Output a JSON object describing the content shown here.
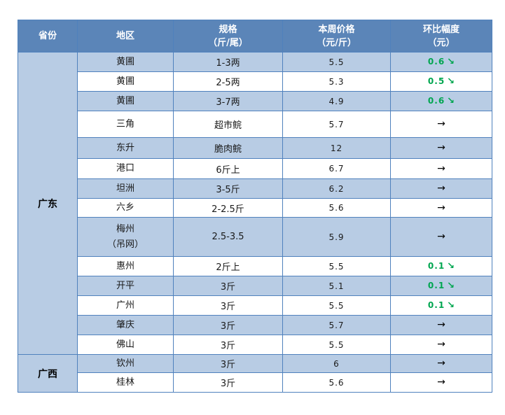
{
  "colors": {
    "header_bg": "#5b85b8",
    "row_alt_bg": "#b8cce4",
    "border": "#4f81bd",
    "down_green": "#00a650",
    "header_text": "#ffffff"
  },
  "icons": {
    "down_arrow": "↘",
    "flat_arrow": "→"
  },
  "table": {
    "columns": [
      {
        "line1": "省份",
        "line2": ""
      },
      {
        "line1": "地区",
        "line2": ""
      },
      {
        "line1": "规格",
        "line2": "（斤/尾）"
      },
      {
        "line1": "本周价格",
        "line2": "（元/斤）"
      },
      {
        "line1": "环比幅度",
        "line2": "（元）"
      }
    ],
    "sections": [
      {
        "province": "广东",
        "rows": [
          {
            "region": "黄圃",
            "region_line2": "",
            "spec": "1-3两",
            "price": "5.5",
            "change": "0.6",
            "trend": "down"
          },
          {
            "region": "黄圃",
            "region_line2": "",
            "spec": "2-5两",
            "price": "5.3",
            "change": "0.5",
            "trend": "down"
          },
          {
            "region": "黄圃",
            "region_line2": "",
            "spec": "3-7两",
            "price": "4.9",
            "change": "0.6",
            "trend": "down"
          },
          {
            "region": "三角",
            "region_line2": "",
            "spec": "超市鲩",
            "price": "5.7",
            "change": "",
            "trend": "flat"
          },
          {
            "region": "东升",
            "region_line2": "",
            "spec": "脆肉鲩",
            "price": "12",
            "change": "",
            "trend": "flat"
          },
          {
            "region": "港口",
            "region_line2": "",
            "spec": "6斤上",
            "price": "6.7",
            "change": "",
            "trend": "flat"
          },
          {
            "region": "坦洲",
            "region_line2": "",
            "spec": "3-5斤",
            "price": "6.2",
            "change": "",
            "trend": "flat"
          },
          {
            "region": "六乡",
            "region_line2": "",
            "spec": "2-2.5斤",
            "price": "5.6",
            "change": "",
            "trend": "flat"
          },
          {
            "region": "梅州",
            "region_line2": "（吊网）",
            "spec": "2.5-3.5",
            "price": "5.9",
            "change": "",
            "trend": "flat"
          },
          {
            "region": "惠州",
            "region_line2": "",
            "spec": "2斤上",
            "price": "5.5",
            "change": "0.1",
            "trend": "down"
          },
          {
            "region": "开平",
            "region_line2": "",
            "spec": "3斤",
            "price": "5.1",
            "change": "0.1",
            "trend": "down"
          },
          {
            "region": "广州",
            "region_line2": "",
            "spec": "3斤",
            "price": "5.5",
            "change": "0.1",
            "trend": "down"
          },
          {
            "region": "肇庆",
            "region_line2": "",
            "spec": "3斤",
            "price": "5.7",
            "change": "",
            "trend": "flat"
          },
          {
            "region": "佛山",
            "region_line2": "",
            "spec": "3斤",
            "price": "5.5",
            "change": "",
            "trend": "flat"
          }
        ]
      },
      {
        "province": "广西",
        "rows": [
          {
            "region": "钦州",
            "region_line2": "",
            "spec": "3斤",
            "price": "6",
            "change": "",
            "trend": "flat"
          },
          {
            "region": "桂林",
            "region_line2": "",
            "spec": "3斤",
            "price": "5.6",
            "change": "",
            "trend": "flat"
          }
        ]
      }
    ]
  }
}
